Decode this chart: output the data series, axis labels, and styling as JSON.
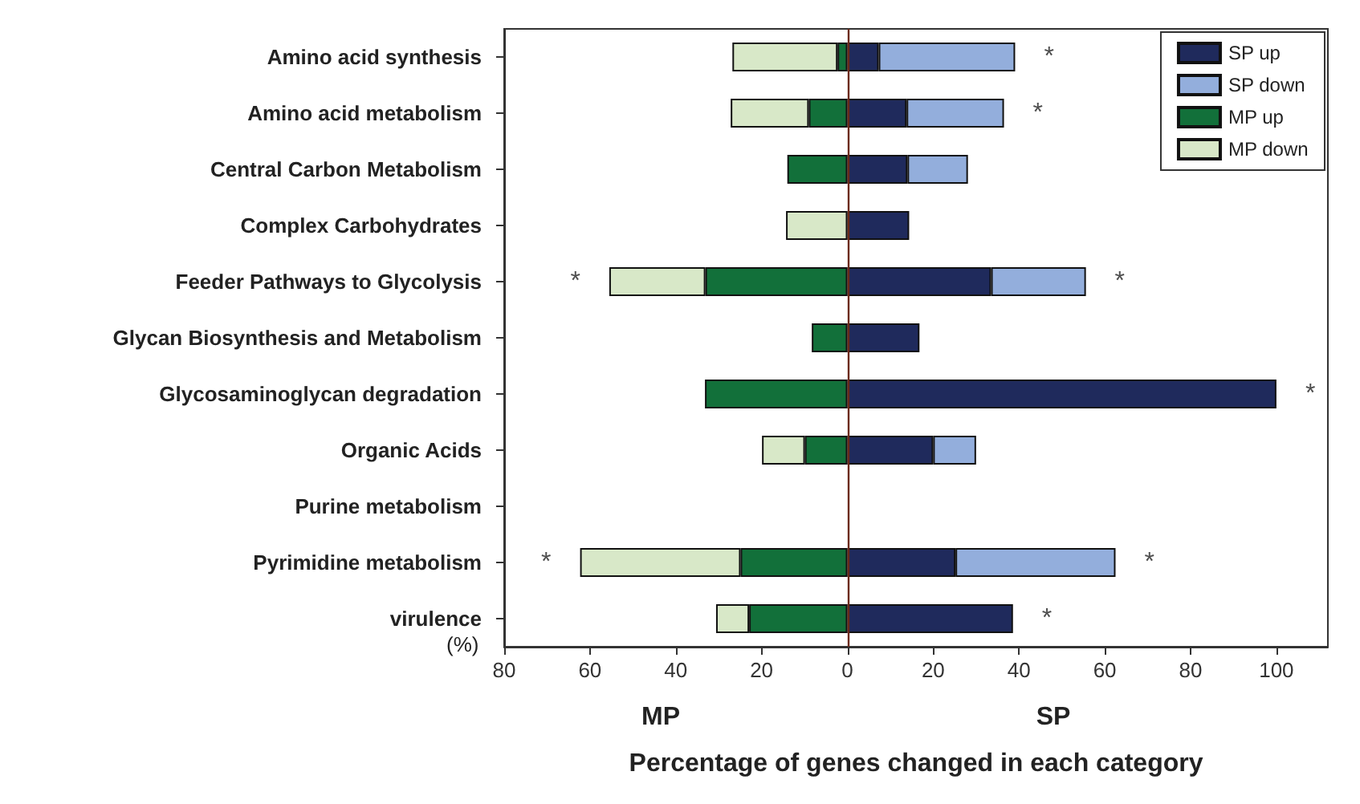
{
  "chart_data": {
    "type": "bar",
    "orientation": "horizontal",
    "stacked": true,
    "categories": [
      "Amino acid synthesis",
      "Amino acid metabolism",
      "Central Carbon Metabolism",
      "Complex Carbohydrates",
      "Feeder Pathways to Glycolysis",
      "Glycan Biosynthesis and Metabolism",
      "Glycosaminoglycan degradation",
      "Organic Acids",
      "Purine metabolism",
      "Pyrimidine metabolism",
      "virulence"
    ],
    "series": [
      {
        "name": "SP up",
        "color": "#1f2a5c",
        "values": [
          7.3,
          13.8,
          14.0,
          14.4,
          33.5,
          16.8,
          100,
          20,
          null,
          25.2,
          38.6
        ]
      },
      {
        "name": "SP down",
        "color": "#93aedc",
        "values": [
          31.8,
          22.7,
          14.1,
          null,
          22.1,
          null,
          null,
          10,
          null,
          37.3,
          null
        ]
      },
      {
        "name": "MP up",
        "color": "#12703a",
        "values": [
          -2.3,
          -9.0,
          -14.0,
          null,
          -33.1,
          -8.3,
          -33.2,
          -9.9,
          null,
          -24.9,
          -22.9
        ]
      },
      {
        "name": "MP down",
        "color": "#d8e8c8",
        "values": [
          -24.5,
          -18.2,
          null,
          -14.3,
          -22.4,
          null,
          null,
          -10,
          null,
          -37.4,
          -7.7
        ]
      }
    ],
    "xlim": [
      -80,
      112
    ],
    "xticks": [
      {
        "value": -80,
        "label": "80"
      },
      {
        "value": -60,
        "label": "60"
      },
      {
        "value": -40,
        "label": "40"
      },
      {
        "value": -20,
        "label": "20"
      },
      0,
      20,
      40,
      60,
      80,
      100
    ],
    "xlabel": "Percentage of genes changed in each category",
    "ref_lines": [
      {
        "axis": "x",
        "value": 0,
        "color": "#6b2a1a"
      }
    ],
    "annotations": [
      "(%)",
      "MP",
      "SP",
      {
        "text": "*",
        "x": 39.1,
        "y": "Amino acid synthesis"
      },
      {
        "text": "*",
        "x": 36.5,
        "y": "Amino acid metabolism"
      },
      {
        "text": "*",
        "x": -55.5,
        "y": "Feeder Pathways to Glycolysis"
      },
      {
        "text": "*",
        "x": 55.6,
        "y": "Feeder Pathways to Glycolysis"
      },
      {
        "text": "*",
        "x": 100,
        "y": "Glycosaminoglycan degradation"
      },
      {
        "text": "*",
        "x": -62.3,
        "y": "Pyrimidine metabolism"
      },
      {
        "text": "*",
        "x": 62.5,
        "y": "Pyrimidine metabolism"
      },
      {
        "text": "*",
        "x": 38.6,
        "y": "virulence"
      }
    ],
    "legend": "top right",
    "grid": false
  }
}
